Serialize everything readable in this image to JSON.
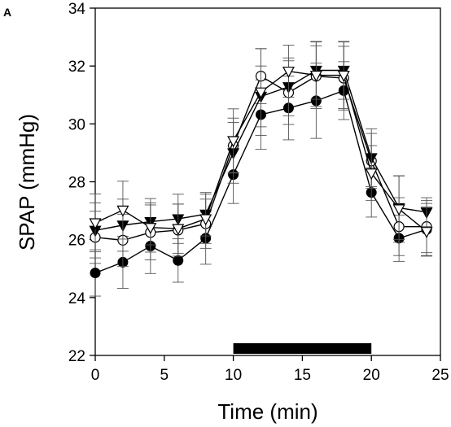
{
  "chart_data": {
    "type": "line",
    "panel_label": "A",
    "xlabel": "Time (min)",
    "ylabel": "SPAP (mmHg)",
    "xlim": [
      0,
      25
    ],
    "ylim": [
      22,
      34
    ],
    "xticks": [
      0,
      5,
      10,
      15,
      20,
      25
    ],
    "yticks": [
      22,
      24,
      26,
      28,
      30,
      32,
      34
    ],
    "grid": false,
    "x": [
      0,
      2,
      4,
      6,
      8,
      10,
      12,
      14,
      16,
      18,
      20,
      22,
      24
    ],
    "stimulus_bar": {
      "start": 10,
      "end": 20
    },
    "series": [
      {
        "marker": "filled-circle",
        "values": [
          24.85,
          25.22,
          25.78,
          25.28,
          26.05,
          28.25,
          30.32,
          30.55,
          30.8,
          31.15,
          27.63,
          26.05,
          26.35
        ],
        "errors": [
          0.8,
          0.9,
          0.95,
          0.75,
          0.9,
          1.0,
          1.2,
          1.1,
          1.3,
          1.0,
          0.85,
          0.8,
          0.9
        ]
      },
      {
        "marker": "open-circle",
        "values": [
          26.08,
          25.98,
          26.25,
          26.33,
          26.55,
          29.25,
          31.65,
          31.08,
          31.65,
          31.58,
          28.72,
          26.45,
          26.45
        ],
        "errors": [
          0.9,
          0.9,
          0.95,
          0.9,
          0.85,
          0.95,
          0.95,
          1.1,
          1.05,
          1.1,
          0.95,
          1.0,
          0.9
        ]
      },
      {
        "marker": "filled-triangle-down",
        "values": [
          26.32,
          26.5,
          26.62,
          26.72,
          26.88,
          29.0,
          30.95,
          31.28,
          31.85,
          31.85,
          28.83,
          27.1,
          26.95
        ],
        "errors": [
          0.95,
          0.9,
          0.8,
          0.85,
          0.75,
          1.05,
          1.05,
          1.0,
          1.0,
          1.0,
          1.0,
          1.1,
          0.5
        ]
      },
      {
        "marker": "open-triangle-down",
        "values": [
          26.58,
          27.02,
          26.42,
          26.38,
          26.72,
          29.42,
          31.1,
          31.82,
          31.68,
          31.68,
          28.3,
          27.06,
          26.28
        ],
        "errors": [
          1.0,
          1.0,
          0.85,
          0.85,
          0.85,
          1.1,
          1.5,
          0.9,
          1.15,
          1.15,
          0.95,
          1.15,
          0.85
        ]
      }
    ]
  }
}
